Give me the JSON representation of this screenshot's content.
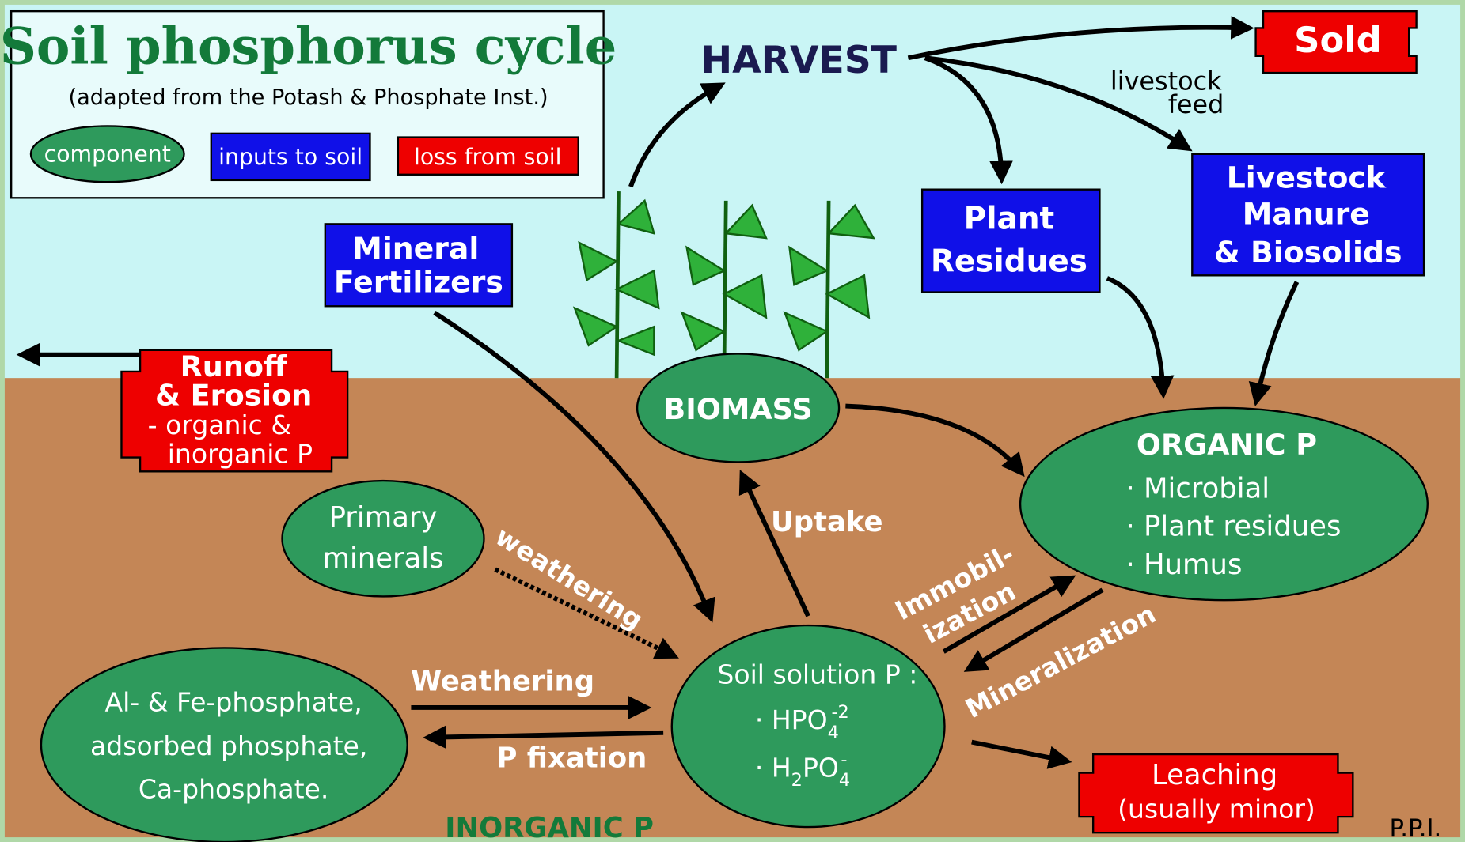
{
  "header": {
    "title": "Soil phosphorus cycle",
    "subtitle": "(adapted from the Potash & Phosphate Inst.)"
  },
  "legend": [
    "component",
    "inputs to soil",
    "loss from soil"
  ],
  "nodes": {
    "harvest": "HARVEST",
    "sold": "Sold",
    "livestock_feed": [
      "livestock",
      "feed"
    ],
    "plant_residues": [
      "Plant",
      "Residues"
    ],
    "manure": [
      "Livestock",
      "Manure",
      "& Biosolids"
    ],
    "mineral_fertilizers": [
      "Mineral",
      "Fertilizers"
    ],
    "runoff": [
      "Runoff",
      "&  Erosion",
      "- organic &",
      "inorganic P"
    ],
    "biomass": "BIOMASS",
    "organic_p": [
      "ORGANIC  P",
      "· Microbial",
      "· Plant residues",
      "· Humus"
    ],
    "primary_minerals": [
      "Primary",
      "minerals"
    ],
    "inorganic_forms": [
      "Al- & Fe-phosphate,",
      "adsorbed phosphate,",
      "Ca-phosphate."
    ],
    "soil_solution": {
      "heading": "Soil solution  P :",
      "ion1": {
        "base": "· HPO",
        "sub": "4",
        "sup": "-2"
      },
      "ion2": {
        "a": "· H",
        "sub1": "2",
        "b": "PO",
        "sub2": "4",
        "sup": "-"
      }
    },
    "leaching": [
      "Leaching",
      "(usually minor)"
    ]
  },
  "processes": {
    "weathering_primary": "weathering",
    "weathering": "Weathering",
    "p_fixation": "P fixation",
    "uptake": "Uptake",
    "immobilization": [
      "Immobil-",
      "ization"
    ],
    "mineralization": "Mineralization"
  },
  "footer": {
    "inorganic_p": "INORGANIC P",
    "credit": "P.P.I."
  }
}
